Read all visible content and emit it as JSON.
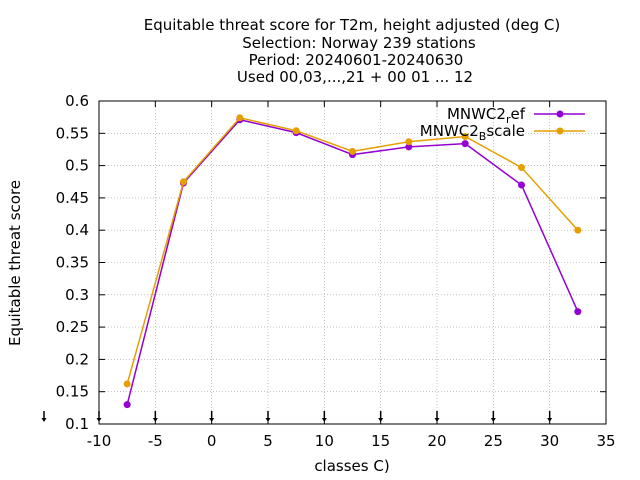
{
  "chart_data": {
    "type": "line",
    "title_lines": [
      "Equitable threat score  for T2m, height adjusted (deg C)",
      "Selection: Norway    239 stations",
      "Period: 20240601-20240630",
      "Used 00,03,...,21 + 00 01 ... 12"
    ],
    "xlabel": "classes C)",
    "ylabel": "Equitable threat score",
    "xlim": [
      -10,
      35
    ],
    "ylim": [
      0.1,
      0.6
    ],
    "xticks": [
      -10,
      -5,
      0,
      5,
      10,
      15,
      20,
      25,
      30,
      35
    ],
    "yticks": [
      0.1,
      0.15,
      0.2,
      0.25,
      0.3,
      0.35,
      0.4,
      0.45,
      0.5,
      0.55,
      0.6
    ],
    "xtick_labels": [
      "-10",
      "-5",
      "0",
      "5",
      "10",
      "15",
      "20",
      "25",
      "30",
      "35"
    ],
    "ytick_labels": [
      "0.1",
      "0.15",
      "0.2",
      "0.25",
      "0.3",
      "0.35",
      "0.4",
      "0.45",
      "0.5",
      "0.55",
      "0.6"
    ],
    "grid": true,
    "legend_position": "top-right",
    "series": [
      {
        "legend_main": "MNWC2",
        "legend_sub": "r",
        "legend_rest": "ef",
        "color": "#9400d3",
        "x": [
          -7.5,
          -2.5,
          2.5,
          7.5,
          12.5,
          17.5,
          22.5,
          27.5,
          32.5
        ],
        "y": [
          0.13,
          0.473,
          0.571,
          0.551,
          0.517,
          0.529,
          0.534,
          0.47,
          0.274
        ]
      },
      {
        "legend_main": "MNWC2",
        "legend_sub": "B",
        "legend_rest": "scale",
        "color": "#e69f00",
        "x": [
          -7.5,
          -2.5,
          2.5,
          7.5,
          12.5,
          17.5,
          22.5,
          27.5,
          32.5
        ],
        "y": [
          0.162,
          0.475,
          0.574,
          0.554,
          0.522,
          0.537,
          0.545,
          0.497,
          0.4
        ]
      }
    ],
    "markers_x": [
      -10,
      -5,
      0,
      5,
      10,
      15,
      20,
      25,
      30
    ]
  }
}
